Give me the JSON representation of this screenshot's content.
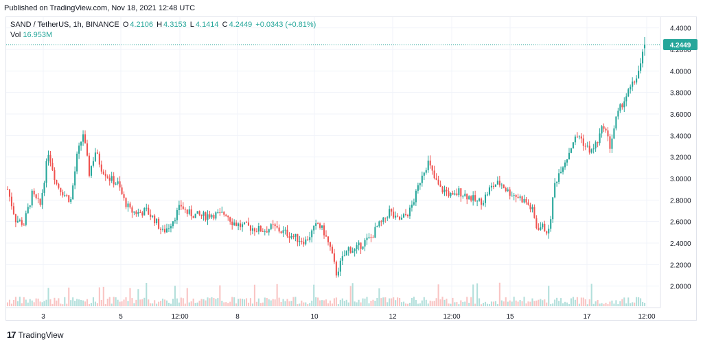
{
  "header": {
    "published_text": "Published on TradingView.com, Nov 18, 2021 12:48 UTC"
  },
  "legend": {
    "symbol": "SAND / TetherUS, 1h, BINANCE",
    "o_label": "O",
    "o_value": "4.2106",
    "h_label": "H",
    "h_value": "4.3153",
    "l_label": "L",
    "l_value": "4.1414",
    "c_label": "C",
    "c_value": "4.2449",
    "change": "+0.0343 (+0.81%)",
    "vol_label": "Vol",
    "vol_value": "16.953M"
  },
  "footer": {
    "logo_glyph": "17",
    "brand": "TradingView"
  },
  "colors": {
    "up": "#26a69a",
    "down": "#ef5350",
    "up_volume": "#b2dfdb",
    "down_volume": "#f9c4c3",
    "grid": "#f0f3fa",
    "last_price_line": "#26a69a"
  },
  "chart_data": {
    "type": "candlestick",
    "symbol": "SAND / TetherUS",
    "interval": "1h",
    "exchange": "BINANCE",
    "ylim": [
      1.8,
      4.5
    ],
    "y_ticks": [
      "4.4000",
      "4.2000",
      "4.0000",
      "3.8000",
      "3.6000",
      "3.4000",
      "3.2000",
      "3.0000",
      "2.8000",
      "2.6000",
      "2.4000",
      "2.2000",
      "2.0000"
    ],
    "x_ticks": [
      "3",
      "5",
      "12:00",
      "8",
      "10",
      "12",
      "12:00",
      "15",
      "17",
      "12:00"
    ],
    "last_price": "4.2449",
    "grid": true,
    "price_path": [
      [
        0,
        2.9
      ],
      [
        4,
        2.62
      ],
      [
        8,
        2.58
      ],
      [
        12,
        2.85
      ],
      [
        16,
        2.75
      ],
      [
        20,
        3.25
      ],
      [
        24,
        2.95
      ],
      [
        28,
        2.85
      ],
      [
        31,
        2.8
      ],
      [
        34,
        3.2
      ],
      [
        37,
        3.42
      ],
      [
        40,
        3.05
      ],
      [
        43,
        3.25
      ],
      [
        46,
        3.1
      ],
      [
        50,
        3.0
      ],
      [
        54,
        2.95
      ],
      [
        57,
        2.8
      ],
      [
        60,
        2.7
      ],
      [
        64,
        2.68
      ],
      [
        68,
        2.7
      ],
      [
        72,
        2.62
      ],
      [
        76,
        2.5
      ],
      [
        79,
        2.56
      ],
      [
        82,
        2.65
      ],
      [
        85,
        2.75
      ],
      [
        88,
        2.68
      ],
      [
        92,
        2.66
      ],
      [
        96,
        2.65
      ],
      [
        100,
        2.67
      ],
      [
        104,
        2.66
      ],
      [
        107,
        2.68
      ],
      [
        110,
        2.6
      ],
      [
        114,
        2.56
      ],
      [
        118,
        2.55
      ],
      [
        122,
        2.53
      ],
      [
        126,
        2.52
      ],
      [
        130,
        2.55
      ],
      [
        134,
        2.51
      ],
      [
        138,
        2.48
      ],
      [
        142,
        2.44
      ],
      [
        146,
        2.42
      ],
      [
        149,
        2.5
      ],
      [
        152,
        2.58
      ],
      [
        155,
        2.5
      ],
      [
        158,
        2.35
      ],
      [
        161,
        2.12
      ],
      [
        164,
        2.25
      ],
      [
        167,
        2.35
      ],
      [
        170,
        2.33
      ],
      [
        174,
        2.4
      ],
      [
        178,
        2.45
      ],
      [
        181,
        2.55
      ],
      [
        184,
        2.6
      ],
      [
        187,
        2.7
      ],
      [
        190,
        2.62
      ],
      [
        193,
        2.62
      ],
      [
        197,
        2.7
      ],
      [
        200,
        2.85
      ],
      [
        203,
        3.05
      ],
      [
        206,
        3.15
      ],
      [
        209,
        3.0
      ],
      [
        212,
        2.9
      ],
      [
        215,
        2.88
      ],
      [
        218,
        2.82
      ],
      [
        221,
        2.88
      ],
      [
        224,
        2.85
      ],
      [
        227,
        2.82
      ],
      [
        230,
        2.78
      ],
      [
        233,
        2.8
      ],
      [
        236,
        2.9
      ],
      [
        239,
        2.95
      ],
      [
        242,
        2.95
      ],
      [
        245,
        2.88
      ],
      [
        248,
        2.85
      ],
      [
        251,
        2.82
      ],
      [
        254,
        2.78
      ],
      [
        257,
        2.7
      ],
      [
        259,
        2.55
      ],
      [
        262,
        2.55
      ],
      [
        265,
        2.5
      ],
      [
        268,
        2.95
      ],
      [
        271,
        3.1
      ],
      [
        274,
        3.2
      ],
      [
        277,
        3.35
      ],
      [
        280,
        3.4
      ],
      [
        283,
        3.3
      ],
      [
        286,
        3.25
      ],
      [
        289,
        3.35
      ],
      [
        292,
        3.5
      ],
      [
        295,
        3.3
      ],
      [
        298,
        3.55
      ],
      [
        301,
        3.7
      ],
      [
        304,
        3.8
      ],
      [
        307,
        3.9
      ],
      [
        310,
        4.05
      ],
      [
        312,
        4.24
      ]
    ],
    "n_candles": 313
  }
}
